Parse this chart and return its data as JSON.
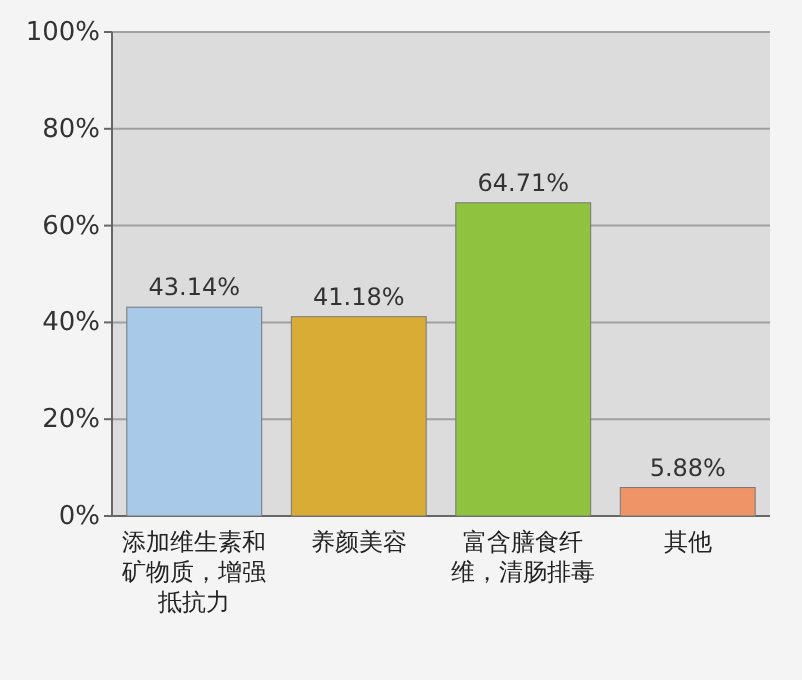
{
  "chart_data": {
    "type": "bar",
    "categories": [
      "添加维生素和矿物质，增强抵抗力",
      "养颜美容",
      "富含膳食纤维，清肠排毒",
      "其他"
    ],
    "values": [
      43.14,
      41.18,
      64.71,
      5.88
    ],
    "colors": [
      "#a9c9e8",
      "#d9ad35",
      "#8fc23f",
      "#ee9466"
    ],
    "value_labels": [
      "43.14%",
      "41.18%",
      "64.71%",
      "5.88%"
    ],
    "ylim": [
      0,
      100
    ],
    "yticks": [
      {
        "value": 0,
        "label": "0%"
      },
      {
        "value": 20,
        "label": "20%"
      },
      {
        "value": 40,
        "label": "40%"
      },
      {
        "value": 60,
        "label": "60%"
      },
      {
        "value": 80,
        "label": "80%"
      },
      {
        "value": 100,
        "label": "100%"
      }
    ],
    "grid": "y"
  }
}
